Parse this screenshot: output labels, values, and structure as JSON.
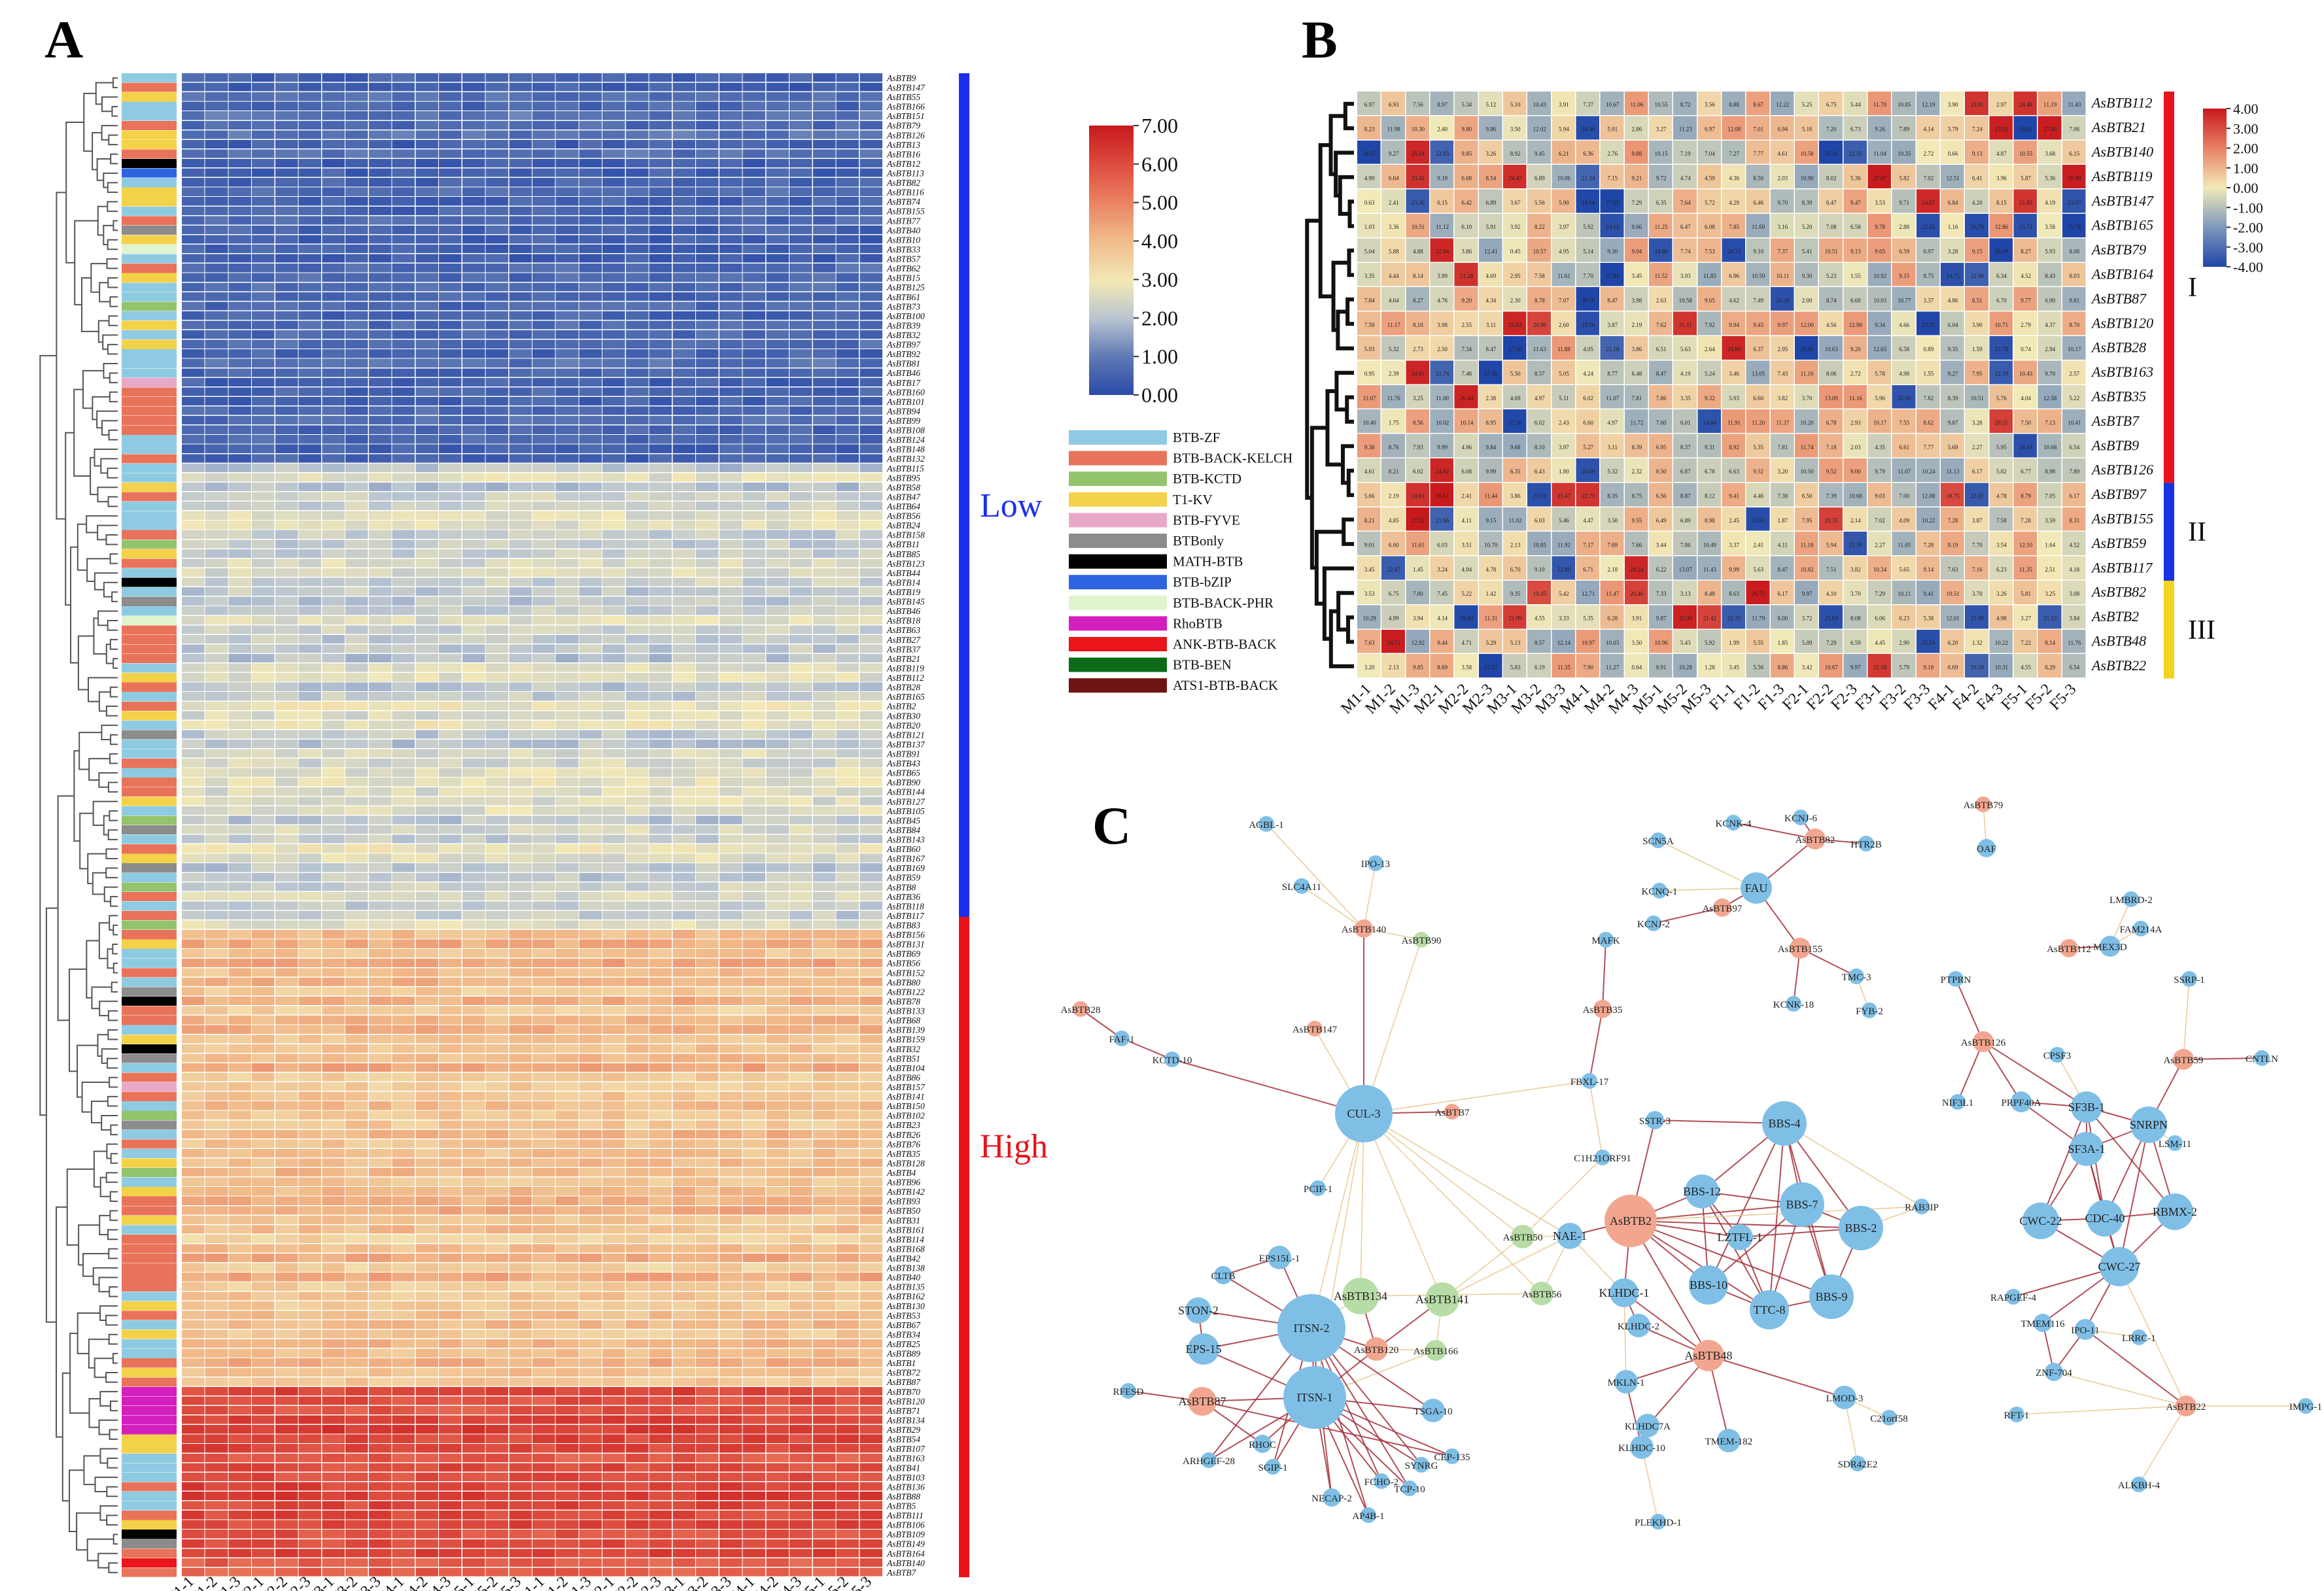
{
  "panel_labels": {
    "a": "A",
    "b": "B",
    "c": "C"
  },
  "samples": [
    "M1-1",
    "M1-2",
    "M1-3",
    "M2-1",
    "M2-2",
    "M2-3",
    "M3-1",
    "M3-2",
    "M3-3",
    "M4-1",
    "M4-2",
    "M4-3",
    "M5-1",
    "M5-2",
    "M5-3",
    "F1-1",
    "F1-2",
    "F1-3",
    "F2-1",
    "F2-2",
    "F2-3",
    "F3-1",
    "F3-2",
    "F3-3",
    "F4-1",
    "F4-2",
    "F4-3",
    "F5-1",
    "F5-2",
    "F5-3"
  ],
  "panel_a": {
    "colorbar_ticks": [
      "7.00",
      "6.00",
      "5.00",
      "4.00",
      "3.00",
      "2.00",
      "1.00",
      "0.00"
    ],
    "low_label": "Low",
    "high_label": "High",
    "legend": [
      {
        "label": "BTB-ZF",
        "color": "#8ecbe2"
      },
      {
        "label": "BTB-BACK-KELCH",
        "color": "#e9735a"
      },
      {
        "label": "BTB-KCTD",
        "color": "#94c36e"
      },
      {
        "label": "T1-KV",
        "color": "#f3d249"
      },
      {
        "label": "BTB-FYVE",
        "color": "#e8a8c8"
      },
      {
        "label": "BTBonly",
        "color": "#8c8c8c"
      },
      {
        "label": "MATH-BTB",
        "color": "#000000"
      },
      {
        "label": "BTB-bZIP",
        "color": "#2e64e0"
      },
      {
        "label": "BTB-BACK-PHR",
        "color": "#dff4cf"
      },
      {
        "label": "RhoBTB",
        "color": "#d41fbf"
      },
      {
        "label": "ANK-BTB-BACK",
        "color": "#e9161b"
      },
      {
        "label": "BTB-BEN",
        "color": "#0c6b18"
      },
      {
        "label": "ATS1-BTB-BACK",
        "color": "#6e1414"
      }
    ],
    "genes": [
      "AsBTB9",
      "AsBTB147",
      "AsBTB55",
      "AsBTB166",
      "AsBTB151",
      "AsBTB79",
      "AsBTB126",
      "AsBTB13",
      "AsBTB16",
      "AsBTB12",
      "AsBTB113",
      "AsBTB82",
      "AsBTB116",
      "AsBTB74",
      "AsBTB155",
      "AsBTB77",
      "AsBTB40",
      "AsBTB10",
      "AsBTB33",
      "AsBTB57",
      "AsBTB62",
      "AsBTB15",
      "AsBTB125",
      "AsBTB61",
      "AsBTB73",
      "AsBTB100",
      "AsBTB39",
      "AsBTB32",
      "AsBTB97",
      "AsBTB92",
      "AsBTB81",
      "AsBTB46",
      "AsBTB17",
      "AsBTB160",
      "AsBTB101",
      "AsBTB94",
      "AsBTB99",
      "AsBTB108",
      "AsBTB124",
      "AsBTB148",
      "AsBTB132",
      "AsBTB115",
      "AsBTB95",
      "AsBTB58",
      "AsBTB47",
      "AsBTB64",
      "AsBTB56",
      "AsBTB24",
      "AsBTB158",
      "AsBTB11",
      "AsBTB85",
      "AsBTB123",
      "AsBTB44",
      "AsBTB14",
      "AsBTB19",
      "AsBTB145",
      "AsBTB46",
      "AsBTB18",
      "AsBTB63",
      "AsBTB27",
      "AsBTB37",
      "AsBTB21",
      "AsBTB119",
      "AsBTB112",
      "AsBTB28",
      "AsBTB165",
      "AsBTB2",
      "AsBTB30",
      "AsBTB20",
      "AsBTB121",
      "AsBTB137",
      "AsBTB91",
      "AsBTB43",
      "AsBTB65",
      "AsBTB90",
      "AsBTB144",
      "AsBTB127",
      "AsBTB105",
      "AsBTB45",
      "AsBTB84",
      "AsBTB143",
      "AsBTB60",
      "AsBTB167",
      "AsBTB169",
      "AsBTB59",
      "AsBTB8",
      "AsBTB36",
      "AsBTB118",
      "AsBTB117",
      "AsBTB83",
      "AsBTB156",
      "AsBTB131",
      "AsBTB69",
      "AsBTB56",
      "AsBTB152",
      "AsBTB80",
      "AsBTB122",
      "AsBTB78",
      "AsBTB133",
      "AsBTB68",
      "AsBTB139",
      "AsBTB159",
      "AsBTB32",
      "AsBTB51",
      "AsBTB104",
      "AsBTB86",
      "AsBTB157",
      "AsBTB141",
      "AsBTB150",
      "AsBTB102",
      "AsBTB23",
      "AsBTB26",
      "AsBTB76",
      "AsBTB35",
      "AsBTB128",
      "AsBTB4",
      "AsBTB96",
      "AsBTB142",
      "AsBTB93",
      "AsBTB50",
      "AsBTB31",
      "AsBTB161",
      "AsBTB114",
      "AsBTB168",
      "AsBTB42",
      "AsBTB138",
      "AsBTB40",
      "AsBTB135",
      "AsBTB162",
      "AsBTB130",
      "AsBTB53",
      "AsBTB67",
      "AsBTB34",
      "AsBTB25",
      "AsBTB89",
      "AsBTB1",
      "AsBTB72",
      "AsBTB87",
      "AsBTB70",
      "AsBTB120",
      "AsBTB71",
      "AsBTB134",
      "AsBTB29",
      "AsBTB54",
      "AsBTB107",
      "AsBTB163",
      "AsBTB41",
      "AsBTB103",
      "AsBTB136",
      "AsBTB88",
      "AsBTB5",
      "AsBTB111",
      "AsBTB106",
      "AsBTB109",
      "AsBTB149",
      "AsBTB164",
      "AsBTB140",
      "AsBTB7"
    ]
  },
  "panel_b": {
    "colorbar_ticks": [
      "4.00",
      "3.00",
      "2.00",
      "1.00",
      "0.00",
      "-1.00",
      "-2.00",
      "-3.00",
      "-4.00"
    ],
    "genes": [
      "AsBTB112",
      "AsBTB21",
      "AsBTB140",
      "AsBTB119",
      "AsBTB147",
      "AsBTB165",
      "AsBTB79",
      "AsBTB164",
      "AsBTB87",
      "AsBTB120",
      "AsBTB28",
      "AsBTB163",
      "AsBTB35",
      "AsBTB7",
      "AsBTB9",
      "AsBTB126",
      "AsBTB97",
      "AsBTB155",
      "AsBTB59",
      "AsBTB117",
      "AsBTB82",
      "AsBTB2",
      "AsBTB48",
      "AsBTB22"
    ],
    "groups": [
      {
        "label": "I",
        "color": "#e8131b"
      },
      {
        "label": "II",
        "color": "#1b32e0"
      },
      {
        "label": "III",
        "color": "#f2d41d"
      }
    ]
  },
  "panel_c": {
    "nodes": [
      {
        "label": "AGBL-1",
        "type": "p"
      },
      {
        "label": "IPO-13",
        "type": "p"
      },
      {
        "label": "SLC4A11",
        "type": "p"
      },
      {
        "label": "AsBTB140",
        "type": "b"
      },
      {
        "label": "AsBTB90",
        "type": "g"
      },
      {
        "label": "AsBTB28",
        "type": "b"
      },
      {
        "label": "FAF-1",
        "type": "p"
      },
      {
        "label": "KCTD-10",
        "type": "p"
      },
      {
        "label": "AsBTB147",
        "type": "b"
      },
      {
        "label": "CUL-3",
        "type": "p"
      },
      {
        "label": "AsBTB7",
        "type": "b"
      },
      {
        "label": "PCIF-1",
        "type": "p"
      },
      {
        "label": "MAFK",
        "type": "p"
      },
      {
        "label": "AsBTB35",
        "type": "b"
      },
      {
        "label": "FBXL-17",
        "type": "p"
      },
      {
        "label": "C1H21ORF91",
        "type": "p"
      },
      {
        "label": "SCN5A",
        "type": "p"
      },
      {
        "label": "KCNQ-1",
        "type": "p"
      },
      {
        "label": "KCNJ-2",
        "type": "p"
      },
      {
        "label": "AsBTB97",
        "type": "b"
      },
      {
        "label": "FAU",
        "type": "p"
      },
      {
        "label": "KCNK-4",
        "type": "p"
      },
      {
        "label": "KCNJ-6",
        "type": "p"
      },
      {
        "label": "AsBTB82",
        "type": "b"
      },
      {
        "label": "HTR2B",
        "type": "p"
      },
      {
        "label": "AsBTB155",
        "type": "b"
      },
      {
        "label": "KCNK-18",
        "type": "p"
      },
      {
        "label": "TMC-3",
        "type": "p"
      },
      {
        "label": "FYB-2",
        "type": "p"
      },
      {
        "label": "AsBTB79",
        "type": "b"
      },
      {
        "label": "OAF",
        "type": "p"
      },
      {
        "label": "LMBRD-2",
        "type": "p"
      },
      {
        "label": "FAM214A",
        "type": "p"
      },
      {
        "label": "MEX3D",
        "type": "p"
      },
      {
        "label": "AsBTB112",
        "type": "b"
      },
      {
        "label": "PTPRN",
        "type": "p"
      },
      {
        "label": "SSRP-1",
        "type": "p"
      },
      {
        "label": "AsBTB126",
        "type": "b"
      },
      {
        "label": "CPSF3",
        "type": "p"
      },
      {
        "label": "AsBTB59",
        "type": "b"
      },
      {
        "label": "CNTLN",
        "type": "p"
      },
      {
        "label": "NIF3L1",
        "type": "p"
      },
      {
        "label": "PRPF40A",
        "type": "p"
      },
      {
        "label": "SF3B-1",
        "type": "p"
      },
      {
        "label": "SNRPN",
        "type": "p"
      },
      {
        "label": "LSM-11",
        "type": "p"
      },
      {
        "label": "SF3A-1",
        "type": "p"
      },
      {
        "label": "CWC-22",
        "type": "p"
      },
      {
        "label": "CDC-40",
        "type": "p"
      },
      {
        "label": "RBMX-2",
        "type": "p"
      },
      {
        "label": "CWC-27",
        "type": "p"
      },
      {
        "label": "RAPGEF-4",
        "type": "p"
      },
      {
        "label": "TMEM116",
        "type": "p"
      },
      {
        "label": "IPO-11",
        "type": "p"
      },
      {
        "label": "LRRC-1",
        "type": "p"
      },
      {
        "label": "ZNF-704",
        "type": "p"
      },
      {
        "label": "AsBTB22",
        "type": "b"
      },
      {
        "label": "IMPG-1",
        "type": "p"
      },
      {
        "label": "RFT-1",
        "type": "p"
      },
      {
        "label": "ALKBH-4",
        "type": "p"
      },
      {
        "label": "SSTR-3",
        "type": "p"
      },
      {
        "label": "BBS-4",
        "type": "p"
      },
      {
        "label": "BBS-12",
        "type": "p"
      },
      {
        "label": "BBS-7",
        "type": "p"
      },
      {
        "label": "LZTFL-1",
        "type": "p"
      },
      {
        "label": "BBS-2",
        "type": "p"
      },
      {
        "label": "RAB3IP",
        "type": "p"
      },
      {
        "label": "AsBTB2",
        "type": "b"
      },
      {
        "label": "BBS-10",
        "type": "p"
      },
      {
        "label": "TTC-8",
        "type": "p"
      },
      {
        "label": "BBS-9",
        "type": "p"
      },
      {
        "label": "AsBTB50",
        "type": "g"
      },
      {
        "label": "NAE-1",
        "type": "p"
      },
      {
        "label": "KLHDC-1",
        "type": "p"
      },
      {
        "label": "AsBTB56",
        "type": "g"
      },
      {
        "label": "KLHDC-2",
        "type": "p"
      },
      {
        "label": "AsBTB48",
        "type": "b"
      },
      {
        "label": "MKLN-1",
        "type": "p"
      },
      {
        "label": "KLHDC7A",
        "type": "p"
      },
      {
        "label": "KLHDC-10",
        "type": "p"
      },
      {
        "label": "TMEM-182",
        "type": "p"
      },
      {
        "label": "LMOD-3",
        "type": "p"
      },
      {
        "label": "C21orf58",
        "type": "p"
      },
      {
        "label": "SDR42E2",
        "type": "p"
      },
      {
        "label": "PLEKHD-1",
        "type": "p"
      },
      {
        "label": "EPS15L-1",
        "type": "p"
      },
      {
        "label": "CLTB",
        "type": "p"
      },
      {
        "label": "AsBTB134",
        "type": "g"
      },
      {
        "label": "AsBTB141",
        "type": "g"
      },
      {
        "label": "STON-2",
        "type": "p"
      },
      {
        "label": "ITSN-2",
        "type": "p"
      },
      {
        "label": "EPS-15",
        "type": "p"
      },
      {
        "label": "AsBTB120",
        "type": "b"
      },
      {
        "label": "AsBTB166",
        "type": "g"
      },
      {
        "label": "RFESD",
        "type": "p"
      },
      {
        "label": "ITSN-1",
        "type": "p"
      },
      {
        "label": "AsBTB87",
        "type": "b"
      },
      {
        "label": "TSGA-10",
        "type": "p"
      },
      {
        "label": "RHOC",
        "type": "p"
      },
      {
        "label": "CEP-135",
        "type": "p"
      },
      {
        "label": "ARHGEF-28",
        "type": "p"
      },
      {
        "label": "SGIP-1",
        "type": "p"
      },
      {
        "label": "SYNRG",
        "type": "p"
      },
      {
        "label": "FCHO-2",
        "type": "p"
      },
      {
        "label": "TCP-10",
        "type": "p"
      },
      {
        "label": "NECAP-2",
        "type": "p"
      },
      {
        "label": "AP4B-1",
        "type": "p"
      }
    ]
  }
}
